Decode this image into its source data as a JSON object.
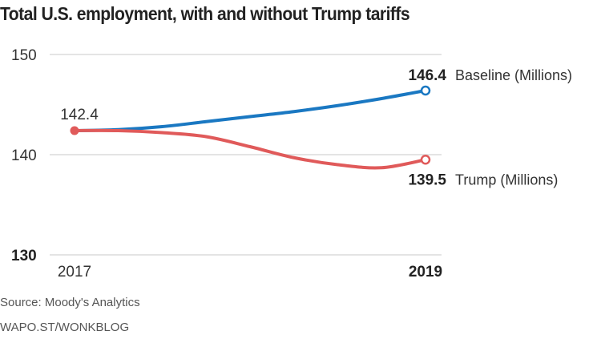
{
  "colors": {
    "baseline": "#1a78c2",
    "trump": "#e05a5a",
    "grid": "#dcdcdc",
    "text": "#222222"
  },
  "chart_data": {
    "type": "line",
    "title": "Total U.S. employment, with and without Trump tariffs",
    "xlabel": "",
    "ylabel": "",
    "ylim": [
      130,
      150
    ],
    "yticks": [
      "150",
      "140",
      "130"
    ],
    "ytick_values": [
      150,
      140,
      130
    ],
    "x_tick_labels": [
      "2017",
      "2019"
    ],
    "x": [
      0,
      1,
      2,
      3,
      4,
      5,
      6,
      7,
      8
    ],
    "series": [
      {
        "name": "Baseline (Millions)",
        "values": [
          142.4,
          142.5,
          142.8,
          143.3,
          143.8,
          144.3,
          144.9,
          145.6,
          146.4
        ],
        "end_label": "146.4"
      },
      {
        "name": "Trump (Millions)",
        "values": [
          142.4,
          142.4,
          142.2,
          141.8,
          140.8,
          139.7,
          139.0,
          138.7,
          139.5
        ],
        "end_label": "139.5"
      }
    ],
    "start_label": "142.4",
    "grid": true,
    "legend": "end-of-line labels"
  },
  "footer": {
    "source": "Source: Moody's Analytics",
    "credit": "WAPO.ST/WONKBLOG"
  }
}
